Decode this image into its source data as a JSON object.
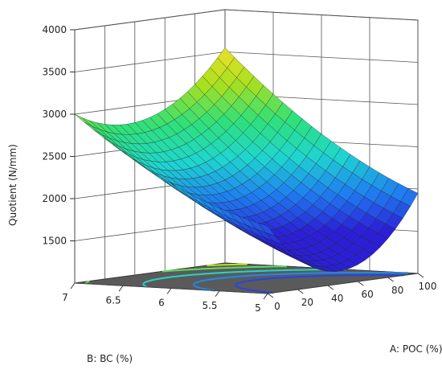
{
  "chart_data": {
    "type": "surface3d",
    "title": "",
    "zlabel": "Quotient (N/mm)",
    "xlabel": "A: POC (%)",
    "ylabel": "B: BC (%)",
    "x_ticks": [
      "0",
      "20",
      "40",
      "60",
      "80",
      "100"
    ],
    "y_ticks": [
      "5",
      "5.5",
      "6",
      "6.5",
      "7"
    ],
    "z_ticks": [
      "1500",
      "2000",
      "2500",
      "3000",
      "3500",
      "4000"
    ],
    "x_range": [
      0,
      100
    ],
    "y_range": [
      5,
      7
    ],
    "z_range": [
      1000,
      4000
    ],
    "surface_corners": {
      "x0_y5": 1800,
      "x100_y5": 1950,
      "x0_y7": 3000,
      "x100_y7": 3550
    },
    "surface_minimum": 1550,
    "colormap": [
      "#2b1fd6",
      "#1f7ef0",
      "#1fd6d0",
      "#2fe07a",
      "#a8e01f",
      "#f0e02a"
    ],
    "floor_color": "#5a5a5a",
    "grid": true
  }
}
